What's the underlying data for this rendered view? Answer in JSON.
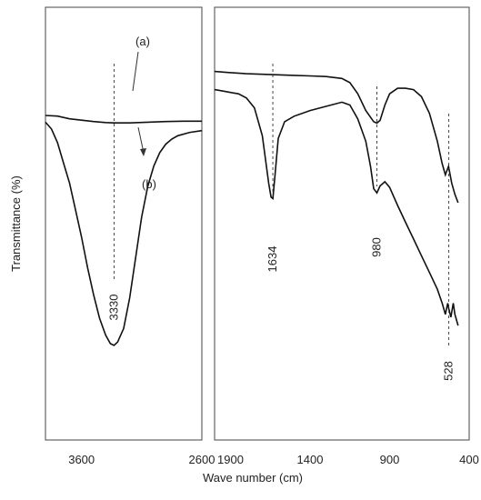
{
  "chart_data": [
    {
      "type": "line",
      "xlim": [
        3900,
        2600
      ],
      "xticks": [
        3600,
        2600
      ],
      "reversed_x": true,
      "ylabel": "Transmittance (%)",
      "grid": false,
      "series": [
        {
          "name": "(a)",
          "x": [
            3900,
            3800,
            3700,
            3600,
            3500,
            3400,
            3330,
            3200,
            3050,
            2900,
            2750,
            2600
          ],
          "y": [
            96,
            95.8,
            95,
            94.6,
            94.2,
            93.9,
            93.8,
            93.8,
            94,
            94.2,
            94.3,
            94.3
          ]
        },
        {
          "name": "(b)",
          "x": [
            3900,
            3850,
            3800,
            3750,
            3700,
            3650,
            3600,
            3550,
            3500,
            3450,
            3400,
            3360,
            3330,
            3300,
            3250,
            3200,
            3150,
            3100,
            3050,
            3000,
            2950,
            2900,
            2850,
            2800,
            2700,
            2600
          ],
          "y": [
            94,
            92,
            88,
            82,
            76,
            68,
            60,
            51,
            43,
            36,
            31,
            28.5,
            28,
            29,
            33,
            42,
            54,
            66,
            75,
            81,
            85,
            87.5,
            89,
            90,
            91,
            91.5
          ]
        }
      ],
      "annotations": [
        {
          "label": "3330",
          "x": 3330
        },
        {
          "label": "(a)",
          "series": "(a)"
        },
        {
          "label": "(b)",
          "series": "(b)"
        }
      ]
    },
    {
      "type": "line",
      "xlim": [
        2000,
        400
      ],
      "xticks": [
        1900,
        1400,
        900,
        400
      ],
      "reversed_x": true,
      "xlabel": "Wave number (cm)",
      "grid": false,
      "series": [
        {
          "name": "(a)",
          "x": [
            2000,
            1900,
            1800,
            1700,
            1600,
            1500,
            1400,
            1300,
            1200,
            1150,
            1100,
            1050,
            1000,
            980,
            960,
            930,
            900,
            850,
            800,
            750,
            700,
            650,
            600,
            570,
            550,
            530,
            510,
            490,
            470
          ],
          "y": [
            97,
            96.6,
            96.2,
            96,
            95.8,
            95.6,
            95.4,
            95.2,
            94.5,
            93,
            89,
            83,
            79,
            78.5,
            79.5,
            85,
            89,
            91,
            91,
            90.5,
            88,
            82,
            72,
            64,
            60,
            63,
            57,
            53,
            50
          ]
        },
        {
          "name": "(b)",
          "x": [
            2000,
            1950,
            1900,
            1850,
            1800,
            1750,
            1700,
            1660,
            1645,
            1634,
            1620,
            1600,
            1560,
            1500,
            1400,
            1300,
            1200,
            1150,
            1100,
            1050,
            1020,
            1000,
            980,
            960,
            930,
            900,
            850,
            800,
            750,
            700,
            650,
            600,
            570,
            550,
            535,
            528,
            515,
            500,
            490,
            470
          ],
          "y": [
            90.5,
            90,
            89.5,
            89,
            87.5,
            84,
            74,
            57,
            52,
            51.5,
            60,
            73,
            79,
            81,
            83,
            84.5,
            86,
            85,
            80,
            72,
            63,
            55,
            53.5,
            56,
            57.5,
            55.5,
            49,
            43,
            37,
            31,
            25,
            19,
            14,
            10,
            14,
            12,
            9,
            14,
            10,
            6
          ]
        }
      ],
      "annotations": [
        {
          "label": "1634",
          "x": 1634
        },
        {
          "label": "980",
          "x": 980
        },
        {
          "label": "528",
          "x": 528
        }
      ]
    }
  ]
}
